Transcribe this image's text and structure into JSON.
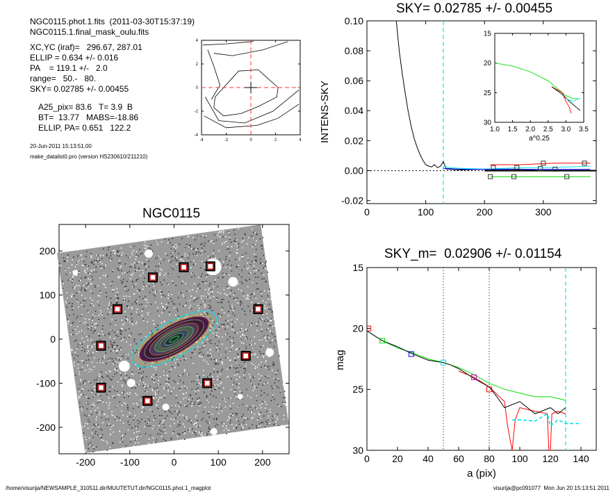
{
  "header": {
    "lines": [
      "NGC0115.phot.1.fits  (2011-03-30T15:37:19)",
      "NGC0115.1.final_mask_oulu.fits",
      "XC,YC (iraf)=   296.67, 287.01",
      "ELLIP = 0.634 +/- 0.016",
      "PA    = 119.1 +/-   2.0",
      "range=   50.-   80.",
      "SKY= 0.02785 +/- 0.00455",
      "A25_pix= 83.6   T= 3.9  B",
      "BT=  13.77   MABS=-18.86",
      "ELLIP, PA= 0.651   122.2"
    ],
    "date": "20-Jun-2011 15:13:51.00",
    "program": "make_datalist0.pro (version HS230610/211210)"
  },
  "footer": {
    "left": "/home/visurija/NEWSAMPLE_310511.dir/MUUTETUT.dir/NGC0115.phot.1_magplot",
    "right": "visurija@pc091077  Mon Jun 20 15:13:51 2011"
  },
  "colors": {
    "axis": "#000000",
    "cyan": "#00e5ee",
    "red": "#ff0000",
    "green": "#00dd00",
    "blue": "#0000ff",
    "magenta": "#cc00cc",
    "dark_red": "#8b0000",
    "grey": "#555555"
  },
  "chart_data": [
    {
      "id": "contour",
      "type": "line",
      "title": "",
      "xlim": [
        -4,
        4
      ],
      "ylim": [
        -4,
        4
      ],
      "xticks": [
        -4,
        -2,
        0,
        2,
        4
      ],
      "yticks": [
        -4,
        -2,
        0,
        2,
        4
      ],
      "crosshair": {
        "x": 0,
        "y": 0
      },
      "series": [
        {
          "values": [
            [
              -3.8,
              -2.4
            ],
            [
              -2.0,
              -3.4
            ],
            [
              0.5,
              -3.2
            ],
            [
              2.2,
              -2.6
            ],
            [
              3.9,
              -1.4
            ]
          ]
        },
        {
          "values": [
            [
              -3.2,
              -1.0
            ],
            [
              -2.5,
              0.2
            ],
            [
              -3.0,
              1.8
            ],
            [
              -3.5,
              3.2
            ]
          ]
        },
        {
          "values": [
            [
              -3.0,
              2.9
            ],
            [
              -1.5,
              2.7
            ],
            [
              1.0,
              3.2
            ],
            [
              3.0,
              3.9
            ]
          ]
        },
        {
          "values": [
            [
              -3.9,
              3.6
            ],
            [
              -2.0,
              3.7
            ],
            [
              0.2,
              3.9
            ]
          ]
        },
        {
          "values": [
            [
              -2.9,
              -0.8
            ],
            [
              -1.0,
              1.4
            ],
            [
              0.6,
              1.5
            ],
            [
              2.2,
              0.0
            ],
            [
              2.1,
              -0.8
            ],
            [
              0.6,
              -1.6
            ],
            [
              -0.8,
              -2.2
            ],
            [
              -2.2,
              -2.4
            ],
            [
              -3.0,
              -1.7
            ],
            [
              -2.9,
              -0.8
            ]
          ]
        },
        {
          "values": [
            [
              -3.7,
              -0.8
            ],
            [
              -2.6,
              -2.8
            ],
            [
              -0.5,
              -3.0
            ],
            [
              1.8,
              -2.0
            ],
            [
              3.9,
              -0.2
            ]
          ]
        }
      ]
    },
    {
      "id": "sky",
      "type": "line",
      "title": "SKY= 0.02785 +/- 0.00455",
      "xlabel": "",
      "ylabel": "INTENS-SKY",
      "xlim": [
        0,
        390
      ],
      "ylim": [
        -0.022,
        0.1
      ],
      "xticks": [
        0,
        100,
        200,
        300
      ],
      "yticks": [
        -0.02,
        0.0,
        0.02,
        0.04,
        0.06,
        0.08,
        0.1
      ],
      "ytick_labels": [
        "-0.02",
        "0.00",
        "0.02",
        "0.04",
        "0.06",
        "0.08",
        "0.10"
      ],
      "vline_x": 130,
      "zero_line": true,
      "series": [
        {
          "color": "#000000",
          "values": [
            [
              50,
              0.1
            ],
            [
              55,
              0.08
            ],
            [
              60,
              0.065
            ],
            [
              65,
              0.052
            ],
            [
              70,
              0.04
            ],
            [
              75,
              0.03
            ],
            [
              80,
              0.022
            ],
            [
              85,
              0.016
            ],
            [
              90,
              0.011
            ],
            [
              95,
              0.007
            ],
            [
              100,
              0.004
            ],
            [
              105,
              0.003
            ],
            [
              110,
              0.0025
            ],
            [
              115,
              0.004
            ],
            [
              120,
              0.002
            ],
            [
              125,
              0.003
            ],
            [
              130,
              0.006
            ],
            [
              135,
              0.001
            ],
            [
              140,
              0.001
            ],
            [
              150,
              0.0005
            ],
            [
              170,
              0.0005
            ],
            [
              200,
              0.001
            ],
            [
              260,
              0.001
            ],
            [
              300,
              0.0
            ],
            [
              390,
              0.0
            ]
          ]
        },
        {
          "color": "#00e5ee",
          "values": [
            [
              130,
              0.003
            ],
            [
              140,
              0.002
            ],
            [
              160,
              0.0015
            ],
            [
              200,
              0.001
            ],
            [
              260,
              0.002
            ],
            [
              310,
              0.002
            ],
            [
              380,
              0.003
            ]
          ]
        },
        {
          "color": "#ff0000",
          "values": [
            [
              210,
              0.004
            ],
            [
              260,
              0.004
            ],
            [
              320,
              0.005
            ],
            [
              380,
              0.005
            ]
          ]
        },
        {
          "color": "#00dd00",
          "values": [
            [
              210,
              -0.004
            ],
            [
              250,
              -0.004
            ],
            [
              290,
              -0.004
            ],
            [
              320,
              -0.004
            ],
            [
              380,
              -0.004
            ]
          ]
        },
        {
          "color": "#0000ff",
          "values": [
            [
              130,
              0.0015
            ],
            [
              170,
              0.0008
            ],
            [
              210,
              0.0008
            ],
            [
              260,
              0.0008
            ],
            [
              380,
              0.0008
            ]
          ]
        }
      ],
      "markers": [
        [
          215,
          0.002
        ],
        [
          255,
          0.002
        ],
        [
          300,
          0.005
        ],
        [
          320,
          0.001
        ],
        [
          370,
          0.005
        ],
        [
          210,
          -0.004
        ],
        [
          250,
          -0.004
        ],
        [
          340,
          -0.004
        ],
        [
          295,
          0.0015
        ]
      ],
      "inset": {
        "xlim": [
          1.0,
          3.5
        ],
        "ylim": [
          30,
          15
        ],
        "xticks": [
          1.0,
          1.5,
          2.0,
          2.5,
          3.0,
          3.5
        ],
        "xtick_labels": [
          "1.0",
          "1.5",
          "2.0",
          "2.5",
          "3.0",
          "3.5"
        ],
        "yticks": [
          15,
          20,
          25,
          30
        ],
        "xlabel": "a^0.25",
        "series": [
          {
            "color": "#00dd00",
            "values": [
              [
                1.0,
                20.0
              ],
              [
                1.5,
                20.5
              ],
              [
                2.0,
                21.5
              ],
              [
                2.5,
                23.0
              ],
              [
                2.8,
                24.5
              ],
              [
                3.0,
                25.5
              ],
              [
                3.2,
                26.0
              ],
              [
                3.4,
                26.0
              ]
            ]
          },
          {
            "color": "#ff0000",
            "values": [
              [
                2.6,
                24.0
              ],
              [
                2.9,
                25.0
              ],
              [
                3.0,
                26.5
              ],
              [
                3.1,
                27.5
              ],
              [
                3.15,
                28.5
              ]
            ]
          },
          {
            "color": "#000000",
            "values": [
              [
                2.6,
                24.0
              ],
              [
                2.9,
                25.3
              ],
              [
                3.1,
                26.5
              ],
              [
                3.2,
                27.0
              ],
              [
                3.3,
                27.5
              ],
              [
                3.4,
                28.0
              ]
            ]
          },
          {
            "color": "#00e5ee",
            "values": [
              [
                3.0,
                26.0
              ],
              [
                3.2,
                26.5
              ],
              [
                3.35,
                26.0
              ]
            ]
          }
        ]
      }
    },
    {
      "id": "image",
      "type": "scatter",
      "title": "NGC0115",
      "xlim": [
        -260,
        260
      ],
      "ylim": [
        -260,
        260
      ],
      "xticks": [
        -200,
        -100,
        0,
        100,
        200
      ],
      "yticks": [
        -200,
        -100,
        0,
        100,
        200
      ],
      "ellipse": {
        "cx": 0,
        "cy": 0,
        "a": 100,
        "ellip": 0.634,
        "pa": 119.1
      },
      "masked_boxes": [
        [
          -165,
          -15
        ],
        [
          -128,
          68
        ],
        [
          -48,
          140
        ],
        [
          22,
          163
        ],
        [
          82,
          165
        ],
        [
          190,
          68
        ],
        [
          162,
          -38
        ],
        [
          75,
          -100
        ],
        [
          -60,
          -140
        ],
        [
          -165,
          -110
        ]
      ]
    },
    {
      "id": "mag",
      "type": "line",
      "title": "SKY_m=  0.02906 +/- 0.01154",
      "xlabel": "a (pix)",
      "ylabel": "mag",
      "xlim": [
        0,
        150
      ],
      "ylim": [
        30,
        15
      ],
      "xticks": [
        0,
        20,
        40,
        60,
        80,
        100,
        120,
        140
      ],
      "yticks": [
        15,
        20,
        25,
        30
      ],
      "dotted_vlines": [
        50,
        80
      ],
      "vline_x": 130,
      "series": [
        {
          "color": "#00dd00",
          "values": [
            [
              0,
              20.2
            ],
            [
              10,
              21.0
            ],
            [
              20,
              21.6
            ],
            [
              30,
              22.0
            ],
            [
              40,
              22.5
            ],
            [
              50,
              22.8
            ],
            [
              60,
              23.2
            ],
            [
              70,
              23.8
            ],
            [
              80,
              24.5
            ],
            [
              90,
              25.0
            ],
            [
              100,
              25.3
            ],
            [
              110,
              25.6
            ],
            [
              120,
              25.6
            ],
            [
              130,
              25.9
            ]
          ]
        },
        {
          "color": "#ff0000",
          "values": [
            [
              60,
              23.5
            ],
            [
              70,
              24.0
            ],
            [
              80,
              24.8
            ],
            [
              90,
              26.0
            ],
            [
              92,
              28.0
            ],
            [
              95,
              30.0
            ],
            [
              97,
              27.5
            ],
            [
              100,
              26.5
            ],
            [
              110,
              26.8
            ],
            [
              118,
              27.0
            ],
            [
              119,
              30.0
            ],
            [
              120,
              30.0
            ],
            [
              121,
              27.0
            ],
            [
              125,
              26.8
            ],
            [
              130,
              27.0
            ]
          ]
        },
        {
          "color": "#000000",
          "values": [
            [
              0,
              20.2
            ],
            [
              10,
              21.0
            ],
            [
              20,
              21.5
            ],
            [
              30,
              22.1
            ],
            [
              40,
              22.6
            ],
            [
              50,
              22.8
            ],
            [
              55,
              23.0
            ],
            [
              60,
              23.3
            ],
            [
              70,
              24.1
            ],
            [
              80,
              24.8
            ],
            [
              85,
              25.6
            ],
            [
              90,
              26.5
            ],
            [
              100,
              26.0
            ],
            [
              110,
              27.0
            ],
            [
              120,
              26.5
            ],
            [
              125,
              27.0
            ],
            [
              130,
              26.5
            ]
          ]
        },
        {
          "color": "#00e5ee",
          "values": [
            [
              95,
              27.5
            ],
            [
              100,
              27.5
            ],
            [
              110,
              27.6
            ],
            [
              118,
              27.0
            ],
            [
              120,
              28.0
            ],
            [
              125,
              27.5
            ],
            [
              130,
              27.8
            ],
            [
              140,
              27.8
            ]
          ]
        }
      ],
      "markers": [
        {
          "x": 1,
          "y": 20.0,
          "color": "#ff0000"
        },
        {
          "x": 10,
          "y": 21.0,
          "color": "#00dd00"
        },
        {
          "x": 29,
          "y": 22.1,
          "color": "#0000ff"
        },
        {
          "x": 50,
          "y": 22.8,
          "color": "#00e5ee"
        },
        {
          "x": 70,
          "y": 24.0,
          "color": "#cc00cc"
        },
        {
          "x": 80,
          "y": 25.0,
          "color": "#ff0000"
        }
      ]
    }
  ]
}
